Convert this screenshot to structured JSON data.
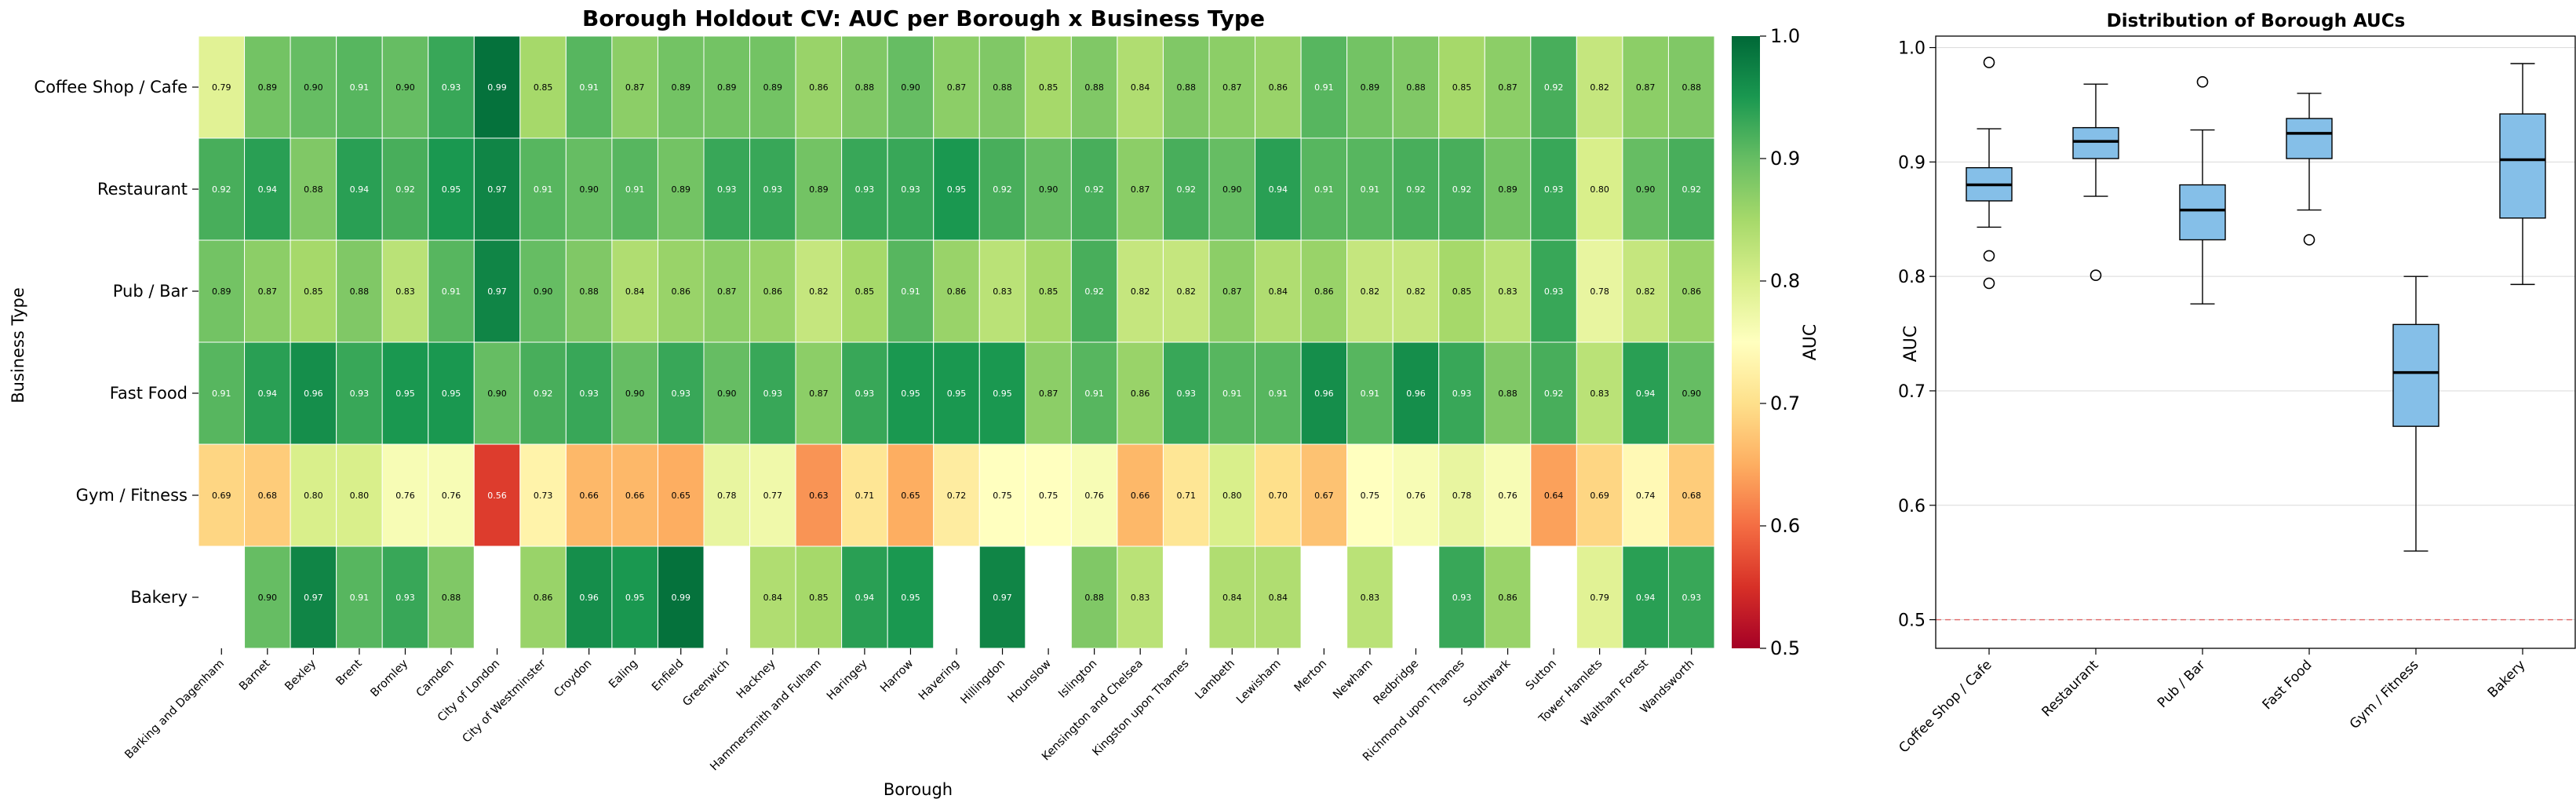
{
  "chart_data": [
    {
      "type": "heatmap",
      "title": "Borough Holdout CV: AUC per Borough x Business Type",
      "xlabel": "Borough",
      "ylabel": "Business Type",
      "colorbar": {
        "label": "AUC",
        "range": [
          0.5,
          1.0
        ],
        "ticks": [
          "0.5",
          "0.6",
          "0.7",
          "0.8",
          "0.9",
          "1.0"
        ],
        "colormap": "RdYlGn"
      },
      "rows": [
        "Coffee Shop / Cafe",
        "Restaurant",
        "Pub / Bar",
        "Fast Food",
        "Gym / Fitness",
        "Bakery"
      ],
      "columns": [
        "Barking and Dagenham",
        "Barnet",
        "Bexley",
        "Brent",
        "Bromley",
        "Camden",
        "City of London",
        "City of Westminster",
        "Croydon",
        "Ealing",
        "Enfield",
        "Greenwich",
        "Hackney",
        "Hammersmith and Fulham",
        "Haringey",
        "Harrow",
        "Havering",
        "Hillingdon",
        "Hounslow",
        "Islington",
        "Kensington and Chelsea",
        "Kingston upon Thames",
        "Lambeth",
        "Lewisham",
        "Merton",
        "Newham",
        "Redbridge",
        "Richmond upon Thames",
        "Southwark",
        "Sutton",
        "Tower Hamlets",
        "Waltham Forest",
        "Wandsworth"
      ],
      "values": [
        [
          0.79,
          0.89,
          0.9,
          0.91,
          0.9,
          0.93,
          0.99,
          0.85,
          0.91,
          0.87,
          0.89,
          0.89,
          0.89,
          0.86,
          0.88,
          0.9,
          0.87,
          0.88,
          0.85,
          0.88,
          0.84,
          0.88,
          0.87,
          0.86,
          0.91,
          0.89,
          0.88,
          0.85,
          0.87,
          0.92,
          0.82,
          0.87,
          0.88
        ],
        [
          0.92,
          0.94,
          0.88,
          0.94,
          0.92,
          0.95,
          0.97,
          0.91,
          0.9,
          0.91,
          0.89,
          0.93,
          0.93,
          0.89,
          0.93,
          0.93,
          0.95,
          0.92,
          0.9,
          0.92,
          0.87,
          0.92,
          0.9,
          0.94,
          0.91,
          0.91,
          0.92,
          0.92,
          0.89,
          0.93,
          0.8,
          0.9,
          0.92
        ],
        [
          0.89,
          0.87,
          0.85,
          0.88,
          0.83,
          0.91,
          0.97,
          0.9,
          0.88,
          0.84,
          0.86,
          0.87,
          0.86,
          0.82,
          0.85,
          0.91,
          0.86,
          0.83,
          0.85,
          0.92,
          0.82,
          0.82,
          0.87,
          0.84,
          0.86,
          0.82,
          0.82,
          0.85,
          0.83,
          0.93,
          0.78,
          0.82,
          0.86
        ],
        [
          0.91,
          0.94,
          0.96,
          0.93,
          0.95,
          0.95,
          0.9,
          0.92,
          0.93,
          0.9,
          0.93,
          0.9,
          0.93,
          0.87,
          0.93,
          0.95,
          0.95,
          0.95,
          0.87,
          0.91,
          0.86,
          0.93,
          0.91,
          0.91,
          0.96,
          0.91,
          0.96,
          0.93,
          0.88,
          0.92,
          0.83,
          0.94,
          0.9
        ],
        [
          0.69,
          0.68,
          0.8,
          0.8,
          0.76,
          0.76,
          0.56,
          0.73,
          0.66,
          0.66,
          0.65,
          0.78,
          0.77,
          0.63,
          0.71,
          0.65,
          0.72,
          0.75,
          0.75,
          0.76,
          0.66,
          0.71,
          0.8,
          0.7,
          0.67,
          0.75,
          0.76,
          0.78,
          0.76,
          0.64,
          0.69,
          0.74,
          0.68
        ],
        [
          null,
          0.9,
          0.97,
          0.91,
          0.93,
          0.88,
          null,
          0.86,
          0.96,
          0.95,
          0.99,
          null,
          0.84,
          0.85,
          0.94,
          0.95,
          null,
          0.97,
          null,
          0.88,
          0.83,
          null,
          0.84,
          0.84,
          null,
          0.83,
          null,
          0.93,
          0.86,
          null,
          0.79,
          0.94,
          0.93
        ]
      ]
    },
    {
      "type": "box",
      "title": "Distribution of Borough AUCs",
      "xlabel": "",
      "ylabel": "AUC",
      "ylim": [
        0.475,
        1.01
      ],
      "yticks": [
        "0.5",
        "0.6",
        "0.7",
        "0.8",
        "0.9",
        "1.0"
      ],
      "reference_line": 0.5,
      "categories": [
        "Coffee Shop / Cafe",
        "Restaurant",
        "Pub / Bar",
        "Fast Food",
        "Gym / Fitness",
        "Bakery"
      ],
      "boxes": [
        {
          "whisker_low": 0.843,
          "q1": 0.866,
          "median": 0.88,
          "q3": 0.895,
          "whisker_high": 0.929,
          "outliers": [
            0.987,
            0.818,
            0.794
          ]
        },
        {
          "whisker_low": 0.87,
          "q1": 0.903,
          "median": 0.918,
          "q3": 0.93,
          "whisker_high": 0.968,
          "outliers": [
            0.801
          ]
        },
        {
          "whisker_low": 0.776,
          "q1": 0.832,
          "median": 0.858,
          "q3": 0.88,
          "whisker_high": 0.928,
          "outliers": [
            0.97
          ]
        },
        {
          "whisker_low": 0.858,
          "q1": 0.903,
          "median": 0.925,
          "q3": 0.938,
          "whisker_high": 0.96,
          "outliers": [
            0.832
          ]
        },
        {
          "whisker_low": 0.56,
          "q1": 0.669,
          "median": 0.716,
          "q3": 0.758,
          "whisker_high": 0.8,
          "outliers": []
        },
        {
          "whisker_low": 0.793,
          "q1": 0.851,
          "median": 0.902,
          "q3": 0.942,
          "whisker_high": 0.986,
          "outliers": []
        }
      ],
      "box_color": "#85bfe8"
    }
  ]
}
